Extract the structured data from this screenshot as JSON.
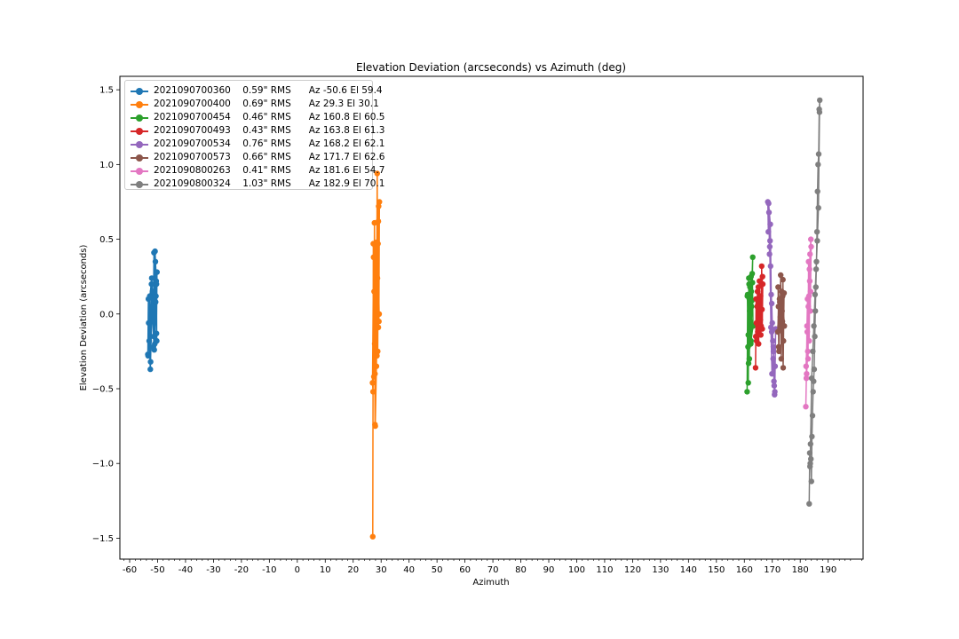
{
  "chart_data": {
    "type": "line",
    "title": "Elevation Deviation (arcseconds) vs Azimuth (deg)",
    "xlabel": "Azimuth",
    "ylabel": "Elevation Deviation (arcseconds)",
    "xlim": [
      -63.5,
      202.5
    ],
    "ylim": [
      -1.64,
      1.59
    ],
    "xticks": [
      -60,
      -50,
      -40,
      -30,
      -20,
      -10,
      0,
      10,
      20,
      30,
      40,
      50,
      60,
      70,
      80,
      90,
      100,
      110,
      120,
      130,
      140,
      150,
      160,
      170,
      180,
      190
    ],
    "xtick_labels": [
      "-60",
      "-50",
      "-40",
      "-30",
      "-20",
      "-10",
      "0",
      "10",
      "20",
      "30",
      "40",
      "50",
      "60",
      "70",
      "80",
      "90",
      "100",
      "110",
      "120",
      "130",
      "140",
      "150",
      "160",
      "170",
      "180",
      "190"
    ],
    "yticks": [
      -1.5,
      -1.0,
      -0.5,
      0.0,
      0.5,
      1.0,
      1.5
    ],
    "ytick_labels": [
      "−1.5",
      "−1.0",
      "−0.5",
      "0.0",
      "0.5",
      "1.0",
      "1.5"
    ],
    "minor_xtick_step": 2,
    "grid": false,
    "legend_position": "top-left",
    "series": [
      {
        "name": "2021090700360    0.59\" RMS      Az -50.6 El 59.4",
        "color": "#1f77b4",
        "x": [
          -53.5,
          -53.3,
          -53.0,
          -52.8,
          -52.5,
          -52.2,
          -52.0,
          -51.8,
          -51.5,
          -51.3,
          -51.0,
          -50.8,
          -50.6,
          -50.4,
          -50.2,
          -50.5,
          -51.2,
          -52.0,
          -52.6,
          -53.2,
          -53.4,
          -52.8,
          -52.1,
          -51.4,
          -50.9,
          -50.4,
          -50.3,
          -50.7,
          -51.5
        ],
        "y": [
          -0.27,
          0.1,
          -0.18,
          0.12,
          -0.32,
          0.2,
          -0.05,
          0.15,
          0.05,
          0.41,
          -0.2,
          0.35,
          0.12,
          -0.13,
          0.28,
          0.22,
          -0.24,
          0.05,
          -0.37,
          -0.06,
          -0.28,
          0.11,
          0.24,
          -0.15,
          0.42,
          0.2,
          -0.18,
          0.08,
          -0.22
        ]
      },
      {
        "name": "2021090700400    0.69\" RMS      Az 29.3 El 30.1",
        "color": "#ff7f0e",
        "x": [
          27.0,
          27.2,
          27.4,
          27.6,
          27.8,
          28.0,
          28.2,
          28.4,
          28.6,
          28.8,
          29.0,
          29.2,
          29.4,
          29.1,
          28.7,
          28.3,
          27.9,
          27.5,
          27.1,
          26.9,
          27.3,
          27.7,
          28.1,
          28.5,
          28.9,
          29.3,
          29.0,
          28.4,
          27.8
        ],
        "y": [
          -1.49,
          0.47,
          -0.42,
          0.61,
          -0.74,
          0.45,
          -0.1,
          0.2,
          0.94,
          -0.25,
          0.62,
          -0.05,
          0.75,
          0.72,
          0.24,
          -0.35,
          -0.75,
          0.15,
          -0.52,
          -0.46,
          0.38,
          -0.2,
          0.03,
          -0.28,
          0.47,
          0.0,
          -0.09,
          0.48,
          -0.4
        ]
      },
      {
        "name": "2021090700454    0.46\" RMS      Az 160.8 El 60.5",
        "color": "#2ca02c",
        "x": [
          161.0,
          161.2,
          161.4,
          161.6,
          161.8,
          162.0,
          162.2,
          162.4,
          162.6,
          162.8,
          163.0,
          162.7,
          162.3,
          161.9,
          161.5,
          161.1,
          161.3,
          161.7,
          162.1,
          162.5,
          162.9,
          163.1,
          162.4,
          161.8,
          161.4
        ],
        "y": [
          -0.52,
          0.13,
          -0.46,
          0.24,
          -0.3,
          0.18,
          -0.1,
          0.25,
          0.05,
          0.27,
          0.38,
          0.09,
          -0.2,
          0.02,
          -0.33,
          0.12,
          -0.22,
          0.2,
          -0.05,
          0.15,
          0.21,
          -0.08,
          -0.18,
          0.1,
          -0.14
        ]
      },
      {
        "name": "2021090700493    0.43\" RMS      Az 163.8 El 61.3",
        "color": "#d62728",
        "x": [
          164.0,
          164.2,
          164.4,
          164.6,
          164.8,
          165.0,
          165.2,
          165.4,
          165.6,
          165.8,
          166.0,
          166.2,
          166.4,
          166.6,
          166.3,
          165.9,
          165.5,
          165.1,
          164.7,
          164.3,
          164.1,
          164.9,
          165.7,
          166.5
        ],
        "y": [
          -0.36,
          0.1,
          -0.18,
          0.05,
          -0.12,
          0.18,
          -0.05,
          0.22,
          -0.02,
          0.12,
          -0.08,
          0.32,
          -0.1,
          0.2,
          0.03,
          -0.14,
          0.08,
          -0.2,
          0.15,
          -0.06,
          -0.15,
          0.09,
          -0.04,
          0.25
        ]
      },
      {
        "name": "2021090700534    0.76\" RMS      Az 168.2 El 62.1",
        "color": "#9467bd",
        "x": [
          168.4,
          168.6,
          168.8,
          169.0,
          169.2,
          169.4,
          169.6,
          169.8,
          170.0,
          170.2,
          170.4,
          170.6,
          170.8,
          171.0,
          170.7,
          170.3,
          169.9,
          169.5,
          169.1,
          168.7,
          169.3,
          169.8,
          170.4,
          170.9,
          171.2
        ],
        "y": [
          0.75,
          0.55,
          0.68,
          0.4,
          0.49,
          0.32,
          0.13,
          0.07,
          -0.06,
          -0.18,
          -0.25,
          -0.45,
          -0.54,
          -0.35,
          -0.48,
          -0.3,
          -0.4,
          -0.09,
          0.45,
          0.74,
          0.6,
          -0.12,
          -0.22,
          -0.52,
          -0.1
        ]
      },
      {
        "name": "2021090700573    0.66\" RMS      Az 171.7 El 62.6",
        "color": "#8c564b",
        "x": [
          172.0,
          172.2,
          172.4,
          172.6,
          172.8,
          173.0,
          173.2,
          173.4,
          173.6,
          173.8,
          174.0,
          174.2,
          173.9,
          173.5,
          173.1,
          172.7,
          172.3,
          172.1,
          172.9,
          173.7,
          174.3
        ],
        "y": [
          -0.12,
          0.05,
          -0.25,
          0.1,
          -0.08,
          0.26,
          -0.3,
          0.15,
          -0.05,
          0.23,
          -0.18,
          0.14,
          -0.36,
          0.02,
          -0.1,
          0.08,
          -0.22,
          0.18,
          -0.02,
          0.12,
          -0.08
        ]
      },
      {
        "name": "2021090800263    0.41\" RMS      Az 181.6 El 54.7",
        "color": "#e377c2",
        "x": [
          182.0,
          182.2,
          182.4,
          182.6,
          182.8,
          183.0,
          183.2,
          183.4,
          183.6,
          183.8,
          183.5,
          183.1,
          182.7,
          182.3,
          182.1,
          182.5,
          182.9,
          183.3,
          183.7,
          183.9
        ],
        "y": [
          -0.62,
          -0.43,
          -0.08,
          0.1,
          -0.3,
          0.35,
          -0.18,
          0.22,
          0.02,
          0.5,
          0.4,
          0.12,
          -0.25,
          -0.4,
          -0.35,
          -0.12,
          0.05,
          0.3,
          0.15,
          0.45
        ]
      },
      {
        "name": "2021090800324    1.03\" RMS      Az 182.9 El 70.1",
        "color": "#7f7f7f",
        "x": [
          183.2,
          183.4,
          183.6,
          183.8,
          184.0,
          184.2,
          184.4,
          184.6,
          184.8,
          185.0,
          185.2,
          185.4,
          185.6,
          185.8,
          186.0,
          186.2,
          186.4,
          186.6,
          186.8,
          187.0,
          186.9,
          186.5,
          186.1,
          185.7,
          185.3,
          184.9,
          184.5,
          184.1,
          183.7,
          183.5
        ],
        "y": [
          -1.27,
          -0.93,
          -1.0,
          -0.97,
          -1.12,
          -0.82,
          -0.68,
          -0.52,
          -0.45,
          -0.37,
          -0.15,
          0.02,
          0.18,
          0.35,
          0.55,
          0.82,
          1.0,
          1.07,
          1.37,
          1.43,
          1.35,
          0.71,
          0.49,
          0.3,
          0.13,
          -0.08,
          -0.25,
          -0.43,
          -0.87,
          -1.02
        ]
      }
    ]
  }
}
